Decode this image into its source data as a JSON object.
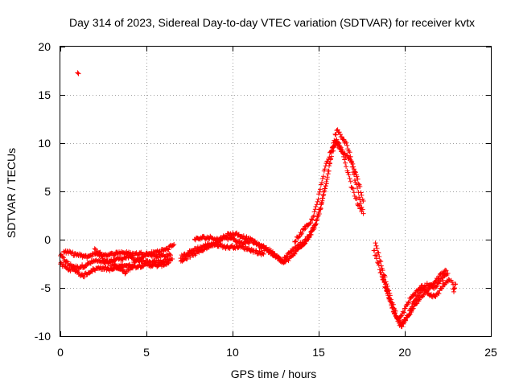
{
  "chart_data": {
    "type": "scatter",
    "title": "Day 314 of 2023, Sidereal Day-to-day VTEC variation (SDTVAR) for receiver kvtx",
    "xlabel": "GPS time / hours",
    "ylabel": "SDTVAR / TECUs",
    "xlim": [
      0,
      25
    ],
    "ylim": [
      -10,
      20
    ],
    "xticks": [
      0,
      5,
      10,
      15,
      20,
      25
    ],
    "yticks": [
      -10,
      -5,
      0,
      5,
      10,
      15,
      20
    ],
    "grid": true,
    "marker": "+",
    "color": "#ff0000",
    "series": [
      {
        "name": "SDTVAR",
        "outliers": [
          {
            "x": 1.0,
            "y": 17.3
          }
        ],
        "tracks": [
          [
            [
              0.0,
              -1.6
            ],
            [
              0.5,
              -2.6
            ],
            [
              1.0,
              -2.9
            ],
            [
              1.4,
              -2.7
            ],
            [
              2.0,
              -2.2
            ],
            [
              2.6,
              -2.4
            ],
            [
              3.3,
              -2.0
            ],
            [
              4.0,
              -1.8
            ],
            [
              4.6,
              -2.2
            ],
            [
              5.2,
              -2.4
            ],
            [
              6.0,
              -2.2
            ],
            [
              6.5,
              -2.0
            ]
          ],
          [
            [
              0.0,
              -2.5
            ],
            [
              0.4,
              -3.0
            ],
            [
              0.9,
              -3.2
            ],
            [
              1.3,
              -3.8
            ],
            [
              1.8,
              -3.2
            ],
            [
              2.3,
              -2.9
            ],
            [
              3.0,
              -3.1
            ],
            [
              3.7,
              -2.6
            ],
            [
              4.3,
              -2.8
            ],
            [
              5.0,
              -2.6
            ],
            [
              5.7,
              -2.7
            ],
            [
              6.3,
              -2.4
            ]
          ],
          [
            [
              0.2,
              -1.2
            ],
            [
              0.8,
              -1.5
            ],
            [
              1.5,
              -1.8
            ],
            [
              2.1,
              -1.4
            ],
            [
              2.8,
              -1.6
            ],
            [
              3.5,
              -1.3
            ],
            [
              4.2,
              -1.5
            ],
            [
              4.9,
              -1.4
            ],
            [
              5.6,
              -1.7
            ],
            [
              6.4,
              -1.6
            ]
          ],
          [
            [
              2.0,
              -1.0
            ],
            [
              2.5,
              -2.0
            ],
            [
              3.0,
              -2.6
            ],
            [
              3.5,
              -3.0
            ],
            [
              3.8,
              -3.5
            ],
            [
              4.4,
              -2.2
            ],
            [
              5.0,
              -1.6
            ],
            [
              5.5,
              -1.3
            ],
            [
              6.2,
              -1.0
            ],
            [
              6.6,
              -0.5
            ]
          ],
          [
            [
              7.0,
              -1.8
            ],
            [
              7.4,
              -1.4
            ],
            [
              7.8,
              -1.0
            ],
            [
              8.3,
              -0.7
            ],
            [
              8.8,
              -0.4
            ],
            [
              9.3,
              -0.6
            ],
            [
              9.7,
              -0.8
            ],
            [
              10.3,
              -0.7
            ],
            [
              10.8,
              -0.9
            ],
            [
              11.3,
              -1.2
            ],
            [
              11.8,
              -1.5
            ]
          ],
          [
            [
              7.0,
              -2.2
            ],
            [
              7.5,
              -1.7
            ],
            [
              8.0,
              -1.3
            ],
            [
              8.5,
              -0.8
            ],
            [
              9.0,
              -0.4
            ],
            [
              9.4,
              0.2
            ],
            [
              10.0,
              0.1
            ],
            [
              10.5,
              -0.4
            ],
            [
              11.0,
              -0.2
            ]
          ],
          [
            [
              7.8,
              0.0
            ],
            [
              8.3,
              0.2
            ],
            [
              8.8,
              0.2
            ],
            [
              9.2,
              0.0
            ],
            [
              9.7,
              0.5
            ],
            [
              10.2,
              0.6
            ],
            [
              10.6,
              0.3
            ],
            [
              11.0,
              0.0
            ],
            [
              11.4,
              -0.4
            ]
          ],
          [
            [
              11.5,
              -0.6
            ],
            [
              12.0,
              -1.1
            ],
            [
              12.5,
              -1.7
            ],
            [
              12.9,
              -2.2
            ],
            [
              13.2,
              -1.6
            ],
            [
              13.5,
              -1.0
            ],
            [
              13.9,
              -0.5
            ],
            [
              14.2,
              -0.2
            ],
            [
              14.5,
              0.6
            ],
            [
              14.8,
              1.5
            ],
            [
              15.1,
              3.3
            ],
            [
              15.4,
              5.6
            ],
            [
              15.6,
              7.5
            ],
            [
              15.8,
              9.5
            ],
            [
              15.95,
              10.8
            ],
            [
              16.1,
              11.4
            ],
            [
              16.3,
              10.6
            ],
            [
              16.6,
              10.0
            ],
            [
              16.8,
              9.0
            ],
            [
              17.0,
              7.0
            ],
            [
              17.2,
              5.6
            ],
            [
              17.4,
              4.0
            ],
            [
              17.6,
              2.7
            ]
          ],
          [
            [
              11.2,
              -0.2
            ],
            [
              11.7,
              -0.6
            ],
            [
              12.2,
              -1.2
            ],
            [
              12.6,
              -1.8
            ],
            [
              12.95,
              -2.4
            ],
            [
              13.3,
              -2.0
            ],
            [
              13.7,
              -1.2
            ],
            [
              14.0,
              -0.6
            ],
            [
              14.3,
              -0.1
            ],
            [
              14.6,
              0.8
            ],
            [
              14.9,
              2.0
            ],
            [
              15.2,
              3.9
            ],
            [
              15.5,
              6.2
            ],
            [
              15.7,
              8.3
            ],
            [
              15.9,
              9.7
            ],
            [
              16.05,
              10.3
            ],
            [
              16.3,
              9.4
            ],
            [
              16.5,
              8.2
            ],
            [
              16.7,
              6.9
            ],
            [
              16.9,
              5.6
            ],
            [
              17.1,
              4.6
            ],
            [
              17.3,
              3.6
            ],
            [
              17.5,
              2.9
            ]
          ],
          [
            [
              13.6,
              -0.2
            ],
            [
              13.9,
              0.5
            ],
            [
              14.2,
              1.2
            ],
            [
              14.5,
              1.6
            ],
            [
              14.8,
              3.0
            ],
            [
              15.1,
              5.2
            ],
            [
              15.4,
              7.7
            ],
            [
              15.7,
              9.1
            ],
            [
              16.0,
              10.2
            ],
            [
              16.4,
              9.0
            ],
            [
              16.8,
              8.4
            ],
            [
              17.1,
              7.2
            ],
            [
              17.4,
              5.4
            ],
            [
              17.6,
              4.0
            ]
          ],
          [
            [
              18.2,
              -1.0
            ],
            [
              18.5,
              -2.8
            ],
            [
              18.8,
              -4.5
            ],
            [
              19.1,
              -6.2
            ],
            [
              19.4,
              -7.6
            ],
            [
              19.7,
              -8.8
            ],
            [
              20.0,
              -8.4
            ],
            [
              20.4,
              -7.3
            ],
            [
              20.8,
              -6.3
            ],
            [
              21.2,
              -5.4
            ],
            [
              21.6,
              -4.6
            ],
            [
              22.0,
              -3.8
            ],
            [
              22.4,
              -3.2
            ]
          ],
          [
            [
              18.3,
              -0.3
            ],
            [
              18.6,
              -2.4
            ],
            [
              18.9,
              -4.3
            ],
            [
              19.2,
              -6.2
            ],
            [
              19.5,
              -7.8
            ],
            [
              19.8,
              -9.0
            ],
            [
              20.1,
              -8.2
            ],
            [
              20.5,
              -6.6
            ],
            [
              20.9,
              -5.4
            ],
            [
              21.3,
              -4.6
            ],
            [
              21.7,
              -5.0
            ],
            [
              22.1,
              -4.2
            ],
            [
              22.5,
              -3.5
            ]
          ],
          [
            [
              18.7,
              -3.8
            ],
            [
              19.0,
              -5.5
            ],
            [
              19.3,
              -7.2
            ],
            [
              19.6,
              -8.5
            ],
            [
              19.9,
              -7.6
            ],
            [
              20.2,
              -6.4
            ],
            [
              20.6,
              -5.6
            ],
            [
              21.0,
              -4.8
            ],
            [
              21.4,
              -5.6
            ],
            [
              21.8,
              -5.9
            ],
            [
              22.2,
              -4.8
            ],
            [
              22.6,
              -4.2
            ]
          ],
          [
            [
              22.7,
              -4.2
            ],
            [
              22.8,
              -4.8
            ],
            [
              22.85,
              -5.4
            ],
            [
              22.9,
              -5.0
            ],
            [
              22.95,
              -4.6
            ]
          ]
        ]
      }
    ]
  }
}
